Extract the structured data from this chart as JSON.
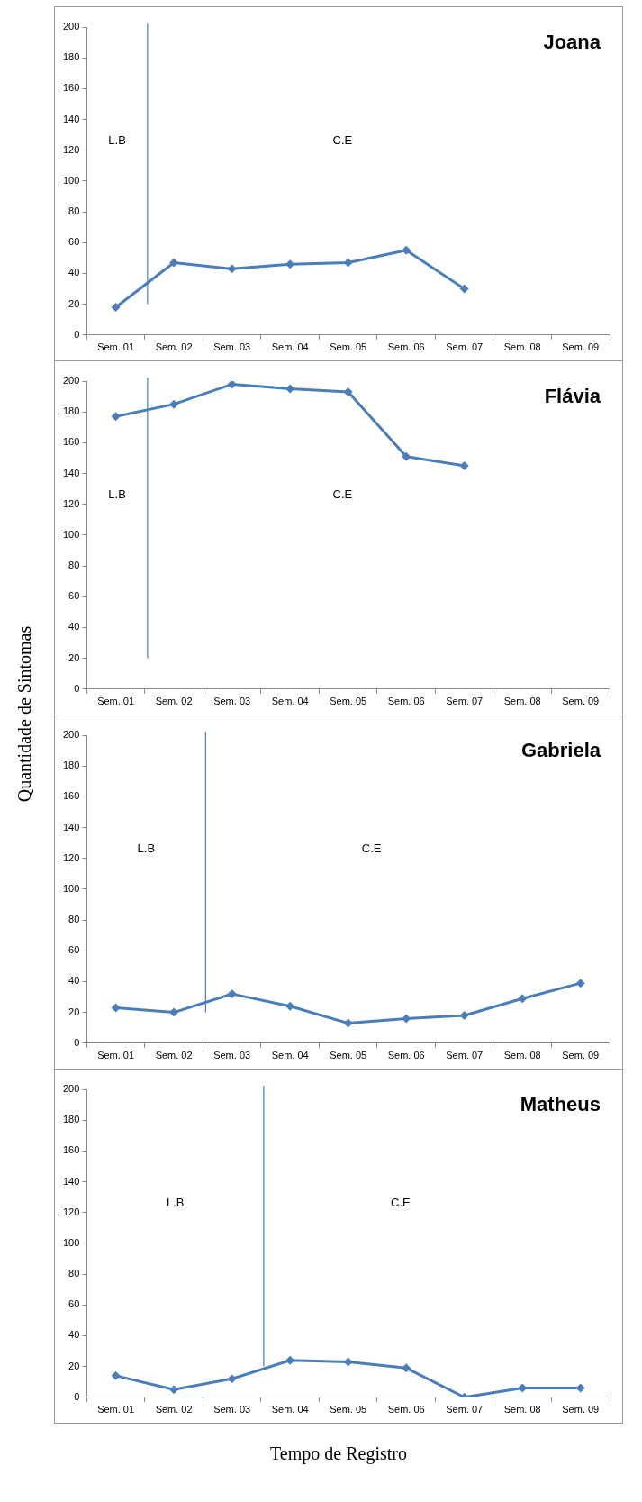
{
  "chart_data": [
    {
      "type": "line",
      "title": "Joana",
      "categories": [
        "Sem. 01",
        "Sem. 02",
        "Sem. 03",
        "Sem. 04",
        "Sem. 05",
        "Sem. 06",
        "Sem. 07",
        "Sem. 08",
        "Sem. 09"
      ],
      "series": [
        {
          "color": "#4a7ebb",
          "values": [
            18,
            47,
            43,
            46,
            47,
            55,
            30,
            null,
            null
          ]
        }
      ],
      "ylim": [
        0,
        200
      ],
      "yticks": [
        0,
        20,
        40,
        60,
        80,
        100,
        120,
        140,
        160,
        180,
        200
      ],
      "grid": false,
      "legend": false,
      "marker": "diamond",
      "line_style": "solid",
      "ref_lines": [
        {
          "axis": "x",
          "value": "Sem. 02",
          "color": "#4a7ebb"
        }
      ],
      "annotations": [
        "L.B",
        "C.E"
      ]
    },
    {
      "type": "line",
      "title": "Flávia",
      "ylabel": "Quantidade de Sintomas",
      "categories": [
        "Sem. 01",
        "Sem. 02",
        "Sem. 03",
        "Sem. 04",
        "Sem. 05",
        "Sem. 06",
        "Sem. 07",
        "Sem. 08",
        "Sem. 09"
      ],
      "series": [
        {
          "color": "#4a7ebb",
          "values": [
            177,
            185,
            198,
            195,
            193,
            151,
            145,
            null,
            null
          ]
        }
      ],
      "ylim": [
        0,
        200
      ],
      "yticks": [
        0,
        20,
        40,
        60,
        80,
        100,
        120,
        140,
        160,
        180,
        200
      ],
      "grid": false,
      "legend": false,
      "marker": "diamond",
      "line_style": "solid",
      "ref_lines": [
        {
          "axis": "x",
          "value": "Sem. 02",
          "color": "#4a7ebb"
        }
      ],
      "annotations": [
        "L.B",
        "C.E"
      ]
    },
    {
      "type": "line",
      "title": "Gabriela",
      "categories": [
        "Sem. 01",
        "Sem. 02",
        "Sem. 03",
        "Sem. 04",
        "Sem. 05",
        "Sem. 06",
        "Sem. 07",
        "Sem. 08",
        "Sem. 09"
      ],
      "series": [
        {
          "color": "#4a7ebb",
          "values": [
            23,
            20,
            32,
            24,
            13,
            16,
            18,
            29,
            39
          ]
        }
      ],
      "ylim": [
        0,
        200
      ],
      "yticks": [
        0,
        20,
        40,
        60,
        80,
        100,
        120,
        140,
        160,
        180,
        200
      ],
      "grid": false,
      "legend": false,
      "marker": "diamond",
      "line_style": "solid",
      "ref_lines": [
        {
          "axis": "x",
          "value": "Sem. 03",
          "color": "#4a7ebb"
        }
      ],
      "annotations": [
        "L.B",
        "C.E"
      ]
    },
    {
      "type": "line",
      "title": "Matheus",
      "xlabel": "Tempo de Registro",
      "categories": [
        "Sem. 01",
        "Sem. 02",
        "Sem. 03",
        "Sem. 04",
        "Sem. 05",
        "Sem. 06",
        "Sem. 07",
        "Sem. 08",
        "Sem. 09"
      ],
      "series": [
        {
          "color": "#4a7ebb",
          "values": [
            14,
            5,
            12,
            24,
            23,
            19,
            0,
            6,
            6
          ]
        }
      ],
      "ylim": [
        0,
        200
      ],
      "yticks": [
        0,
        20,
        40,
        60,
        80,
        100,
        120,
        140,
        160,
        180,
        200
      ],
      "grid": false,
      "legend": false,
      "marker": "diamond",
      "line_style": "solid",
      "ref_lines": [
        {
          "axis": "x",
          "value": "Sem. 04",
          "color": "#4a7ebb"
        }
      ],
      "annotations": [
        "L.B",
        "C.E"
      ]
    }
  ]
}
